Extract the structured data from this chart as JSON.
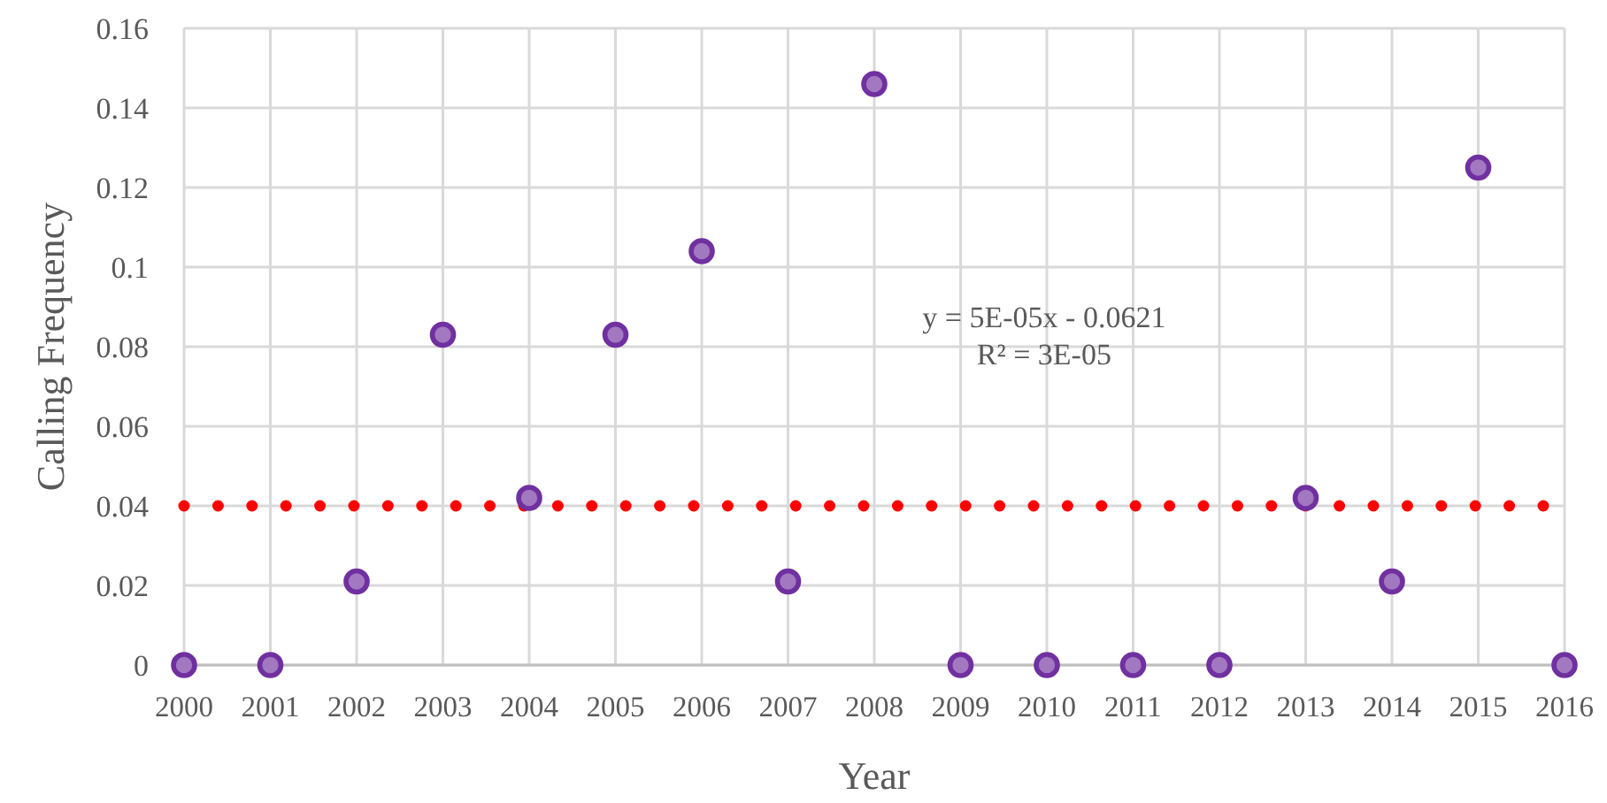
{
  "chart_data": {
    "type": "scatter",
    "xlabel": "Year",
    "ylabel": "Calling Frequency",
    "annotations": [
      "y = 5E-05x - 0.0621",
      "R² = 3E-05"
    ],
    "x": [
      2000,
      2001,
      2002,
      2003,
      2004,
      2005,
      2006,
      2007,
      2008,
      2009,
      2010,
      2011,
      2012,
      2013,
      2014,
      2015,
      2016
    ],
    "series": [
      {
        "color": "#7030a0",
        "marker": "circle",
        "values": [
          0,
          0,
          0.021,
          0.083,
          0.042,
          0.083,
          0.104,
          0.021,
          0.146,
          0,
          0,
          0,
          0,
          0.042,
          0.021,
          0.125,
          0
        ]
      },
      {
        "type": "line",
        "color": "#ff0000",
        "x": [
          2000,
          2016
        ],
        "values": [
          0.04,
          0.04
        ],
        "line_style": "dotted",
        "marker": "none"
      }
    ],
    "xlim": [
      2000,
      2016
    ],
    "xticks": [
      2000,
      2001,
      2002,
      2003,
      2004,
      2005,
      2006,
      2007,
      2008,
      2009,
      2010,
      2011,
      2012,
      2013,
      2014,
      2015,
      2016
    ],
    "ylim": [
      0,
      0.16
    ],
    "yticks": [
      0,
      0.02,
      0.04,
      0.06,
      0.08,
      0.1,
      0.12,
      0.14,
      0.16
    ],
    "grid": true
  }
}
